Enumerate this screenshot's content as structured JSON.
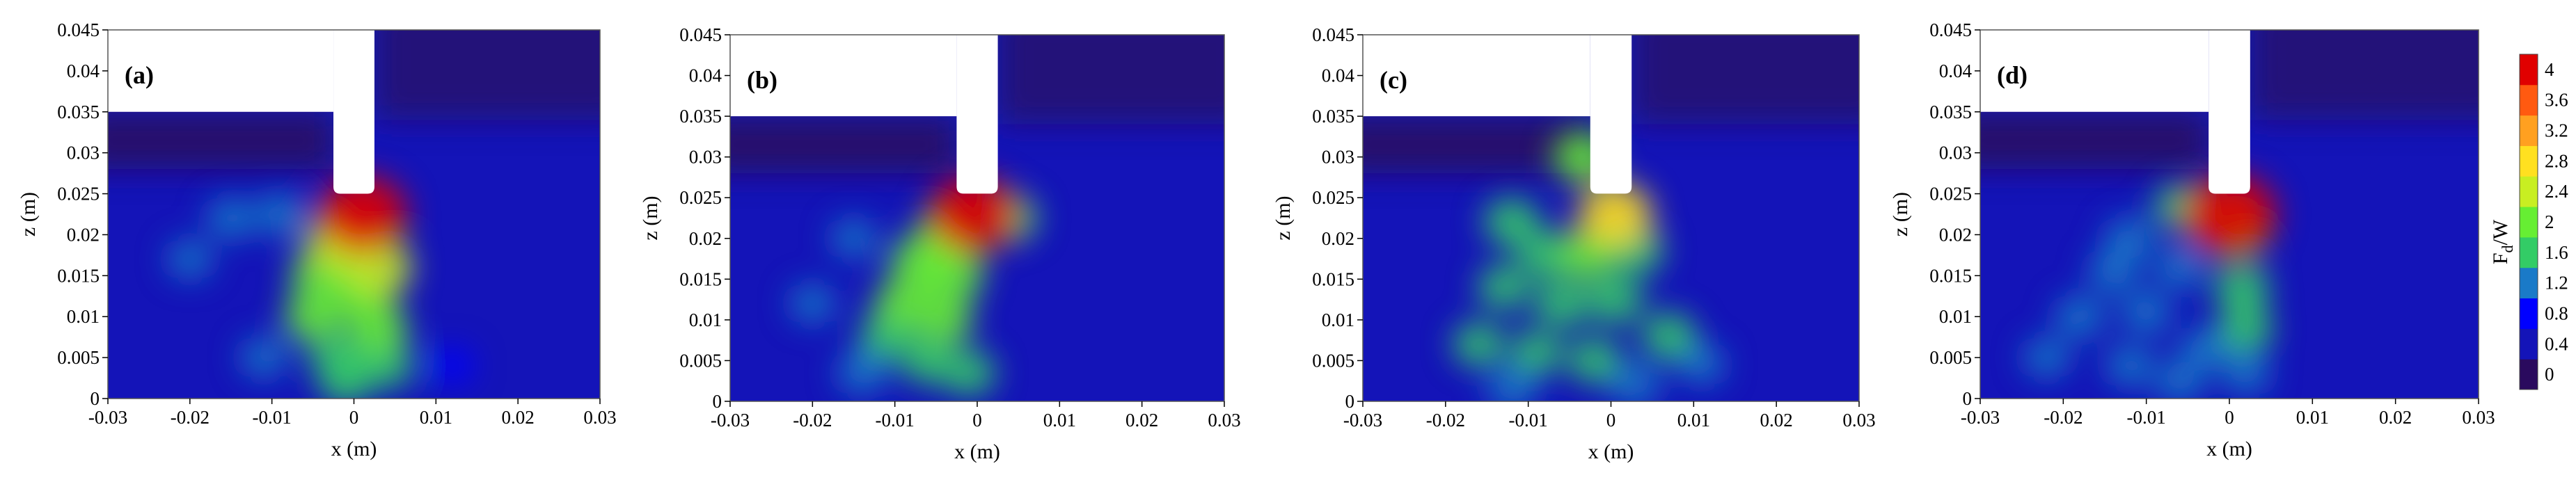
{
  "chart_data": {
    "type": "heatmap",
    "x": {
      "label": "x (m)",
      "lim": [
        -0.03,
        0.03
      ],
      "ticks": [
        -0.03,
        -0.02,
        -0.01,
        0,
        0.01,
        0.02,
        0.03
      ],
      "tick_labels": [
        "-0.03",
        "-0.02",
        "-0.01",
        "0",
        "0.01",
        "0.02",
        "0.03"
      ]
    },
    "z": {
      "label": "z (m)",
      "lim": [
        0,
        0.045
      ],
      "ticks": [
        0,
        0.005,
        0.01,
        0.015,
        0.02,
        0.025,
        0.03,
        0.035,
        0.04,
        0.045
      ],
      "tick_labels": [
        "0",
        "0.005",
        "0.01",
        "0.015",
        "0.02",
        "0.025",
        "0.03",
        "0.035",
        "0.04",
        "0.045"
      ]
    },
    "colorbar": {
      "label": "F",
      "label_sub": "d",
      "label_tail": "/W",
      "ticks": [
        0,
        0.4,
        0.8,
        1.2,
        1.6,
        2,
        2.4,
        2.8,
        3.2,
        3.6,
        4
      ],
      "tick_labels": [
        "0",
        "0.4",
        "0.8",
        "1.2",
        "1.6",
        "2",
        "2.4",
        "2.8",
        "3.2",
        "3.6",
        "4"
      ],
      "colors": [
        "#2a0a5e",
        "#1414b8",
        "#0000ff",
        "#1a7ac8",
        "#33cc66",
        "#66ee33",
        "#c8ee22",
        "#ffe020",
        "#ffa020",
        "#ff5a10",
        "#e00000"
      ]
    },
    "panels": [
      {
        "label": "(a)",
        "background": 0.4,
        "masks": {
          "left_top_z": 0.035,
          "slot_x": [
            -0.0025,
            0.0025
          ],
          "slot_bottom_z": 0.025,
          "slot_top_z": 0.045
        },
        "spots": [
          {
            "x": 0.001,
            "z": 0.0225,
            "value": 3.8
          },
          {
            "x": -0.002,
            "z": 0.019,
            "value": 2.2
          },
          {
            "x": 0.003,
            "z": 0.016,
            "value": 2.4
          },
          {
            "x": -0.004,
            "z": 0.015,
            "value": 2.0
          },
          {
            "x": 0.001,
            "z": 0.012,
            "value": 2.0
          },
          {
            "x": -0.005,
            "z": 0.01,
            "value": 1.8
          },
          {
            "x": 0.003,
            "z": 0.0085,
            "value": 1.9
          },
          {
            "x": -0.002,
            "z": 0.005,
            "value": 1.7
          },
          {
            "x": 0.004,
            "z": 0.004,
            "value": 1.5
          },
          {
            "x": -0.001,
            "z": 0.002,
            "value": 1.5
          },
          {
            "x": -0.015,
            "z": 0.022,
            "value": 1.2
          },
          {
            "x": -0.009,
            "z": 0.0225,
            "value": 1.3
          },
          {
            "x": -0.02,
            "z": 0.017,
            "value": 1.0
          },
          {
            "x": -0.011,
            "z": 0.005,
            "value": 1.1
          },
          {
            "x": 0.012,
            "z": 0.004,
            "value": 0.9
          }
        ]
      },
      {
        "label": "(b)",
        "background": 0.4,
        "masks": {
          "left_top_z": 0.035,
          "slot_x": [
            -0.0025,
            0.0025
          ],
          "slot_bottom_z": 0.0255,
          "slot_top_z": 0.045
        },
        "spots": [
          {
            "x": -0.0005,
            "z": 0.023,
            "value": 3.8
          },
          {
            "x": -0.004,
            "z": 0.02,
            "value": 2.1
          },
          {
            "x": -0.007,
            "z": 0.017,
            "value": 1.9
          },
          {
            "x": -0.003,
            "z": 0.0155,
            "value": 2.1
          },
          {
            "x": -0.009,
            "z": 0.012,
            "value": 1.8
          },
          {
            "x": -0.004,
            "z": 0.01,
            "value": 1.8
          },
          {
            "x": -0.011,
            "z": 0.008,
            "value": 1.6
          },
          {
            "x": -0.006,
            "z": 0.005,
            "value": 1.6
          },
          {
            "x": -0.001,
            "z": 0.0035,
            "value": 1.5
          },
          {
            "x": 0.004,
            "z": 0.0225,
            "value": 1.7
          },
          {
            "x": -0.014,
            "z": 0.0035,
            "value": 1.3
          },
          {
            "x": -0.02,
            "z": 0.012,
            "value": 1.0
          },
          {
            "x": -0.015,
            "z": 0.02,
            "value": 1.0
          }
        ]
      },
      {
        "label": "(c)",
        "background": 0.4,
        "masks": {
          "left_top_z": 0.035,
          "slot_x": [
            -0.0025,
            0.0025
          ],
          "slot_bottom_z": 0.0255,
          "slot_top_z": 0.045
        },
        "spots": [
          {
            "x": 0.0005,
            "z": 0.023,
            "value": 2.8
          },
          {
            "x": -0.0035,
            "z": 0.03,
            "value": 1.8
          },
          {
            "x": -0.012,
            "z": 0.022,
            "value": 1.7
          },
          {
            "x": -0.008,
            "z": 0.018,
            "value": 1.6
          },
          {
            "x": -0.003,
            "z": 0.018,
            "value": 1.9
          },
          {
            "x": 0.003,
            "z": 0.0185,
            "value": 1.7
          },
          {
            "x": -0.013,
            "z": 0.014,
            "value": 1.4
          },
          {
            "x": -0.006,
            "z": 0.012,
            "value": 1.6
          },
          {
            "x": 0.0005,
            "z": 0.0125,
            "value": 1.7
          },
          {
            "x": -0.016,
            "z": 0.007,
            "value": 1.4
          },
          {
            "x": -0.009,
            "z": 0.006,
            "value": 1.4
          },
          {
            "x": -0.002,
            "z": 0.005,
            "value": 1.5
          },
          {
            "x": 0.007,
            "z": 0.008,
            "value": 1.6
          },
          {
            "x": 0.003,
            "z": 0.002,
            "value": 1.3
          },
          {
            "x": -0.012,
            "z": 0.0015,
            "value": 1.3
          },
          {
            "x": 0.011,
            "z": 0.0045,
            "value": 1.1
          }
        ]
      },
      {
        "label": "(d)",
        "background": 0.4,
        "masks": {
          "left_top_z": 0.035,
          "slot_x": [
            -0.0025,
            0.0025
          ],
          "slot_bottom_z": 0.025,
          "slot_top_z": 0.045
        },
        "spots": [
          {
            "x": 0.0,
            "z": 0.0225,
            "value": 4.1
          },
          {
            "x": 0.001,
            "z": 0.0205,
            "value": 2.0
          },
          {
            "x": -0.006,
            "z": 0.0235,
            "value": 1.4
          },
          {
            "x": -0.012,
            "z": 0.0195,
            "value": 1.3
          },
          {
            "x": -0.014,
            "z": 0.0155,
            "value": 1.3
          },
          {
            "x": -0.006,
            "z": 0.016,
            "value": 1.3
          },
          {
            "x": -0.018,
            "z": 0.01,
            "value": 1.3
          },
          {
            "x": -0.01,
            "z": 0.0105,
            "value": 1.3
          },
          {
            "x": 0.0015,
            "z": 0.0135,
            "value": 1.7
          },
          {
            "x": 0.002,
            "z": 0.0085,
            "value": 1.6
          },
          {
            "x": -0.003,
            "z": 0.006,
            "value": 1.3
          },
          {
            "x": -0.022,
            "z": 0.005,
            "value": 1.1
          },
          {
            "x": -0.012,
            "z": 0.004,
            "value": 1.2
          },
          {
            "x": 0.002,
            "z": 0.003,
            "value": 1.2
          },
          {
            "x": -0.006,
            "z": 0.002,
            "value": 1.2
          }
        ]
      }
    ]
  }
}
